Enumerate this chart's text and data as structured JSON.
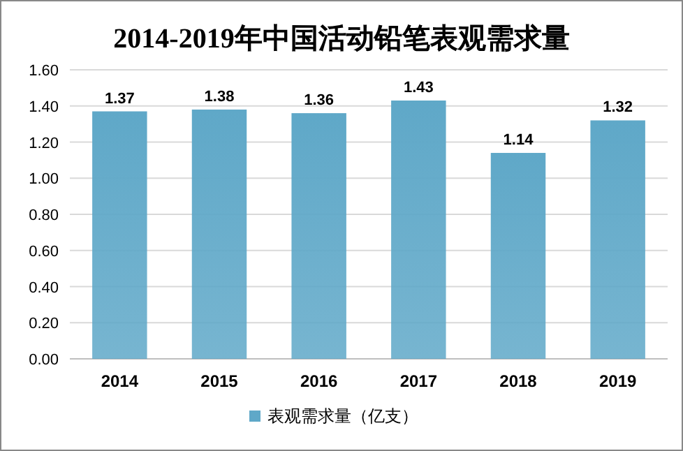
{
  "chart_data": {
    "type": "bar",
    "title": "2014-2019年中国活动铅笔表观需求量",
    "categories": [
      "2014",
      "2015",
      "2016",
      "2017",
      "2018",
      "2019"
    ],
    "series": [
      {
        "name": "表观需求量（亿支）",
        "color": "#5fa8c8",
        "values": [
          1.37,
          1.38,
          1.36,
          1.43,
          1.14,
          1.32
        ]
      }
    ],
    "ylim": [
      0,
      1.6
    ],
    "yticks": [
      {
        "value": 0,
        "label": "0.00"
      },
      {
        "value": 0.2,
        "label": "0.20"
      },
      {
        "value": 0.4,
        "label": "0.40"
      },
      {
        "value": 0.6,
        "label": "0.60"
      },
      {
        "value": 0.8,
        "label": "0.80"
      },
      {
        "value": 1.0,
        "label": "1.00"
      },
      {
        "value": 1.2,
        "label": "1.20"
      },
      {
        "value": 1.4,
        "label": "1.40"
      },
      {
        "value": 1.6,
        "label": "1.60"
      }
    ],
    "grid": "y",
    "legend": "bottom",
    "data_labels": true
  }
}
